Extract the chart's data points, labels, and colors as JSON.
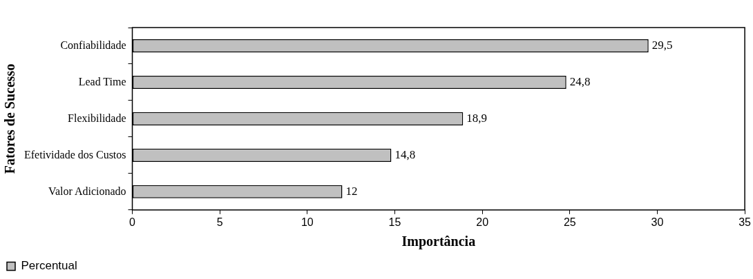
{
  "chart_data": {
    "type": "bar",
    "orientation": "horizontal",
    "xlabel": "Importância",
    "ylabel": "Fatores de Sucesso",
    "categories": [
      "Confiabilidade",
      "Lead Time",
      "Flexibilidade",
      "Efetividade dos Custos",
      "Valor Adicionado"
    ],
    "series": [
      {
        "name": "Percentual",
        "color": "#c0c0c0",
        "values": [
          29.5,
          24.8,
          18.9,
          14.8,
          12
        ],
        "value_labels": [
          "29,5",
          "24,8",
          "18,9",
          "14,8",
          "12"
        ]
      }
    ],
    "xlim": [
      0,
      35
    ],
    "xticks": [
      0,
      5,
      10,
      15,
      20,
      25,
      30,
      35
    ],
    "grid": false,
    "legend": "bottom left"
  }
}
